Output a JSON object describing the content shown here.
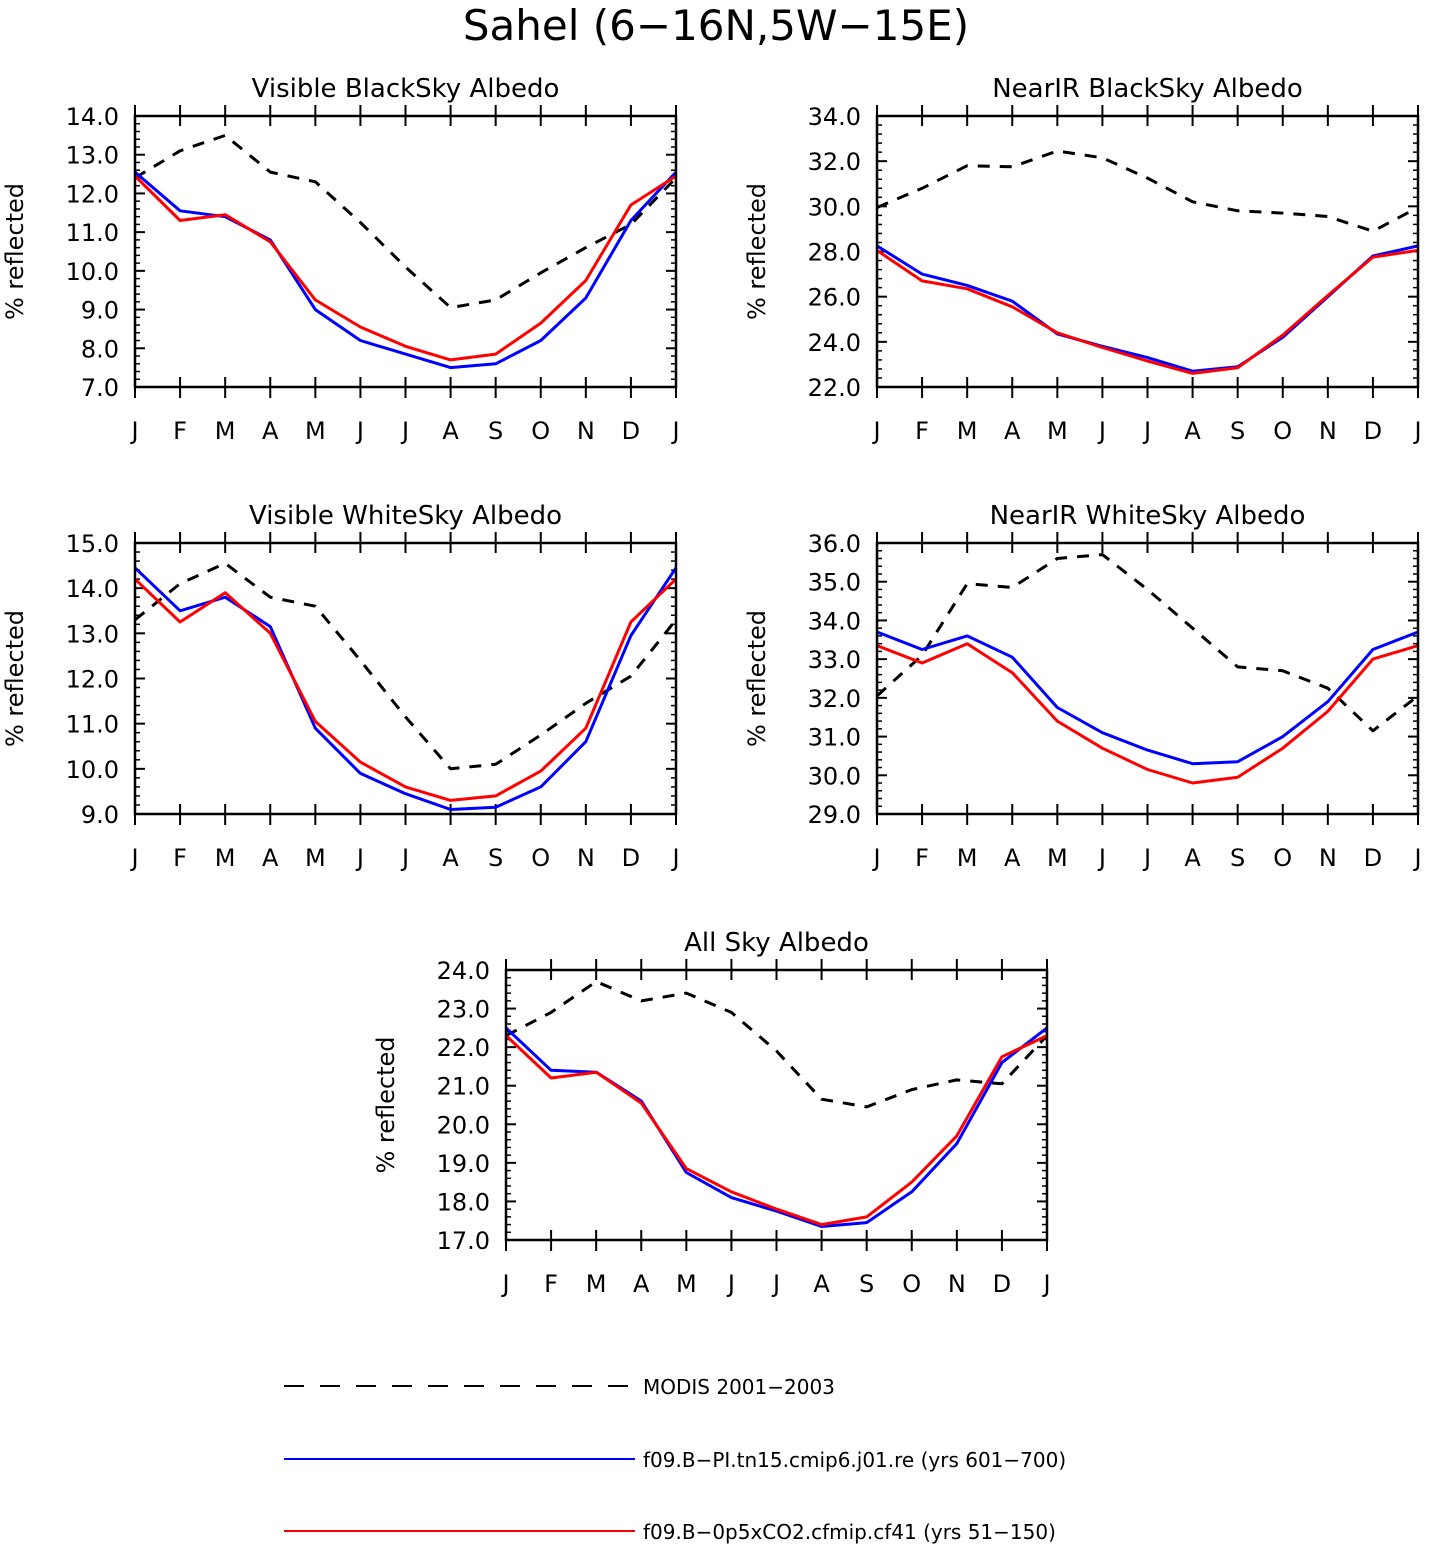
{
  "title": "Sahel (6−16N,5W−15E)",
  "legend": [
    {
      "label": "MODIS 2001−2003",
      "color": "#000000",
      "style": "dashed"
    },
    {
      "label": "f09.B−PI.tn15.cmip6.j01.re (yrs 601−700)",
      "color": "#0000ff",
      "style": "solid"
    },
    {
      "label": "f09.B−0p5xCO2.cfmip.cf41 (yrs 51−150)",
      "color": "#ff0000",
      "style": "solid"
    }
  ],
  "chart_data": [
    {
      "type": "line",
      "title": "Visible BlackSky Albedo",
      "ylabel": "% reflected",
      "categories": [
        "J",
        "F",
        "M",
        "A",
        "M",
        "J",
        "J",
        "A",
        "S",
        "O",
        "N",
        "D",
        "J"
      ],
      "ylim": [
        7.0,
        14.0
      ],
      "yticks": [
        "7.0",
        "8.0",
        "9.0",
        "10.0",
        "11.0",
        "12.0",
        "13.0",
        "14.0"
      ],
      "series": [
        {
          "name": "MODIS 2001−2003",
          "values": [
            12.4,
            13.1,
            13.5,
            12.55,
            12.3,
            11.25,
            10.1,
            9.05,
            9.25,
            9.95,
            10.6,
            11.2,
            12.4
          ]
        },
        {
          "name": "f09.B−PI.tn15.cmip6.j01.re (yrs 601−700)",
          "values": [
            12.55,
            11.55,
            11.4,
            10.8,
            9.0,
            8.2,
            7.85,
            7.5,
            7.6,
            8.2,
            9.3,
            11.3,
            12.55
          ]
        },
        {
          "name": "f09.B−0p5xCO2.cfmip.cf41 (yrs 51−150)",
          "values": [
            12.45,
            11.3,
            11.45,
            10.75,
            9.25,
            8.55,
            8.05,
            7.7,
            7.85,
            8.65,
            9.75,
            11.7,
            12.45
          ]
        }
      ]
    },
    {
      "type": "line",
      "title": "NearIR BlackSky Albedo",
      "ylabel": "% reflected",
      "categories": [
        "J",
        "F",
        "M",
        "A",
        "M",
        "J",
        "J",
        "A",
        "S",
        "O",
        "N",
        "D",
        "J"
      ],
      "ylim": [
        22.0,
        34.0
      ],
      "yticks": [
        "22.0",
        "24.0",
        "26.0",
        "28.0",
        "30.0",
        "32.0",
        "34.0"
      ],
      "series": [
        {
          "name": "MODIS 2001−2003",
          "values": [
            29.95,
            30.8,
            31.8,
            31.75,
            32.45,
            32.15,
            31.25,
            30.2,
            29.8,
            29.7,
            29.55,
            28.9,
            29.95
          ]
        },
        {
          "name": "f09.B−PI.tn15.cmip6.j01.re (yrs 601−700)",
          "values": [
            28.25,
            27.0,
            26.5,
            25.8,
            24.35,
            23.8,
            23.3,
            22.7,
            22.9,
            24.2,
            26.0,
            27.8,
            28.25
          ]
        },
        {
          "name": "f09.B−0p5xCO2.cfmip.cf41 (yrs 51−150)",
          "values": [
            28.05,
            26.7,
            26.35,
            25.55,
            24.4,
            23.75,
            23.15,
            22.6,
            22.85,
            24.3,
            26.05,
            27.75,
            28.05
          ]
        }
      ]
    },
    {
      "type": "line",
      "title": "Visible WhiteSky Albedo",
      "ylabel": "% reflected",
      "categories": [
        "J",
        "F",
        "M",
        "A",
        "M",
        "J",
        "J",
        "A",
        "S",
        "O",
        "N",
        "D",
        "J"
      ],
      "ylim": [
        9.0,
        15.0
      ],
      "yticks": [
        "9.0",
        "10.0",
        "11.0",
        "12.0",
        "13.0",
        "14.0",
        "15.0"
      ],
      "series": [
        {
          "name": "MODIS 2001−2003",
          "values": [
            13.3,
            14.1,
            14.55,
            13.8,
            13.6,
            12.4,
            11.15,
            10.0,
            10.1,
            10.75,
            11.45,
            12.05,
            13.3
          ]
        },
        {
          "name": "f09.B−PI.tn15.cmip6.j01.re (yrs 601−700)",
          "values": [
            14.45,
            13.5,
            13.8,
            13.15,
            10.9,
            9.9,
            9.45,
            9.1,
            9.15,
            9.6,
            10.6,
            12.95,
            14.45
          ]
        },
        {
          "name": "f09.B−0p5xCO2.cfmip.cf41 (yrs 51−150)",
          "values": [
            14.2,
            13.25,
            13.9,
            13.0,
            11.05,
            10.15,
            9.6,
            9.3,
            9.4,
            9.95,
            10.9,
            13.25,
            14.2
          ]
        }
      ]
    },
    {
      "type": "line",
      "title": "NearIR WhiteSky Albedo",
      "ylabel": "% reflected",
      "categories": [
        "J",
        "F",
        "M",
        "A",
        "M",
        "J",
        "J",
        "A",
        "S",
        "O",
        "N",
        "D",
        "J"
      ],
      "ylim": [
        29.0,
        36.0
      ],
      "yticks": [
        "29.0",
        "30.0",
        "31.0",
        "32.0",
        "33.0",
        "34.0",
        "35.0",
        "36.0"
      ],
      "series": [
        {
          "name": "MODIS 2001−2003",
          "values": [
            32.05,
            33.1,
            34.95,
            34.85,
            35.6,
            35.7,
            34.8,
            33.8,
            32.8,
            32.7,
            32.25,
            31.15,
            32.05
          ]
        },
        {
          "name": "f09.B−PI.tn15.cmip6.j01.re (yrs 601−700)",
          "values": [
            33.7,
            33.25,
            33.6,
            33.05,
            31.75,
            31.1,
            30.65,
            30.3,
            30.35,
            31.0,
            31.9,
            33.25,
            33.7
          ]
        },
        {
          "name": "f09.B−0p5xCO2.cfmip.cf41 (yrs 51−150)",
          "values": [
            33.35,
            32.9,
            33.4,
            32.65,
            31.4,
            30.7,
            30.15,
            29.8,
            29.95,
            30.7,
            31.65,
            33.0,
            33.35
          ]
        }
      ]
    },
    {
      "type": "line",
      "title": "All Sky Albedo",
      "ylabel": "% reflected",
      "categories": [
        "J",
        "F",
        "M",
        "A",
        "M",
        "J",
        "J",
        "A",
        "S",
        "O",
        "N",
        "D",
        "J"
      ],
      "ylim": [
        17.0,
        24.0
      ],
      "yticks": [
        "17.0",
        "18.0",
        "19.0",
        "20.0",
        "21.0",
        "22.0",
        "23.0",
        "24.0"
      ],
      "series": [
        {
          "name": "MODIS 2001−2003",
          "values": [
            22.3,
            22.9,
            23.7,
            23.2,
            23.4,
            22.9,
            21.9,
            20.65,
            20.45,
            20.9,
            21.15,
            21.05,
            22.3
          ]
        },
        {
          "name": "f09.B−PI.tn15.cmip6.j01.re (yrs 601−700)",
          "values": [
            22.5,
            21.4,
            21.35,
            20.6,
            18.75,
            18.1,
            17.75,
            17.35,
            17.45,
            18.25,
            19.5,
            21.6,
            22.5
          ]
        },
        {
          "name": "f09.B−0p5xCO2.cfmip.cf41 (yrs 51−150)",
          "values": [
            22.3,
            21.2,
            21.35,
            20.55,
            18.85,
            18.25,
            17.8,
            17.4,
            17.6,
            18.5,
            19.7,
            21.75,
            22.3
          ]
        }
      ]
    }
  ]
}
